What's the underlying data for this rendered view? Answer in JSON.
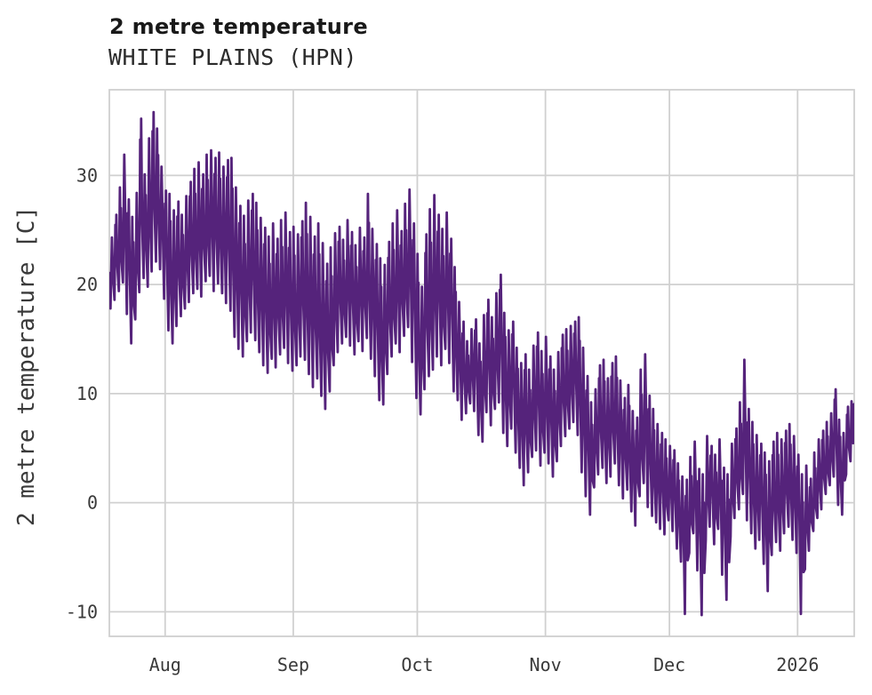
{
  "header": {
    "title": "2 metre temperature",
    "subtitle": "WHITE PLAINS (HPN)"
  },
  "chart_data": {
    "type": "line",
    "title": "2 metre temperature",
    "subtitle": "WHITE PLAINS (HPN)",
    "ylabel": "2 metre temperature [C]",
    "xlabel": "",
    "unit": "C",
    "grid": true,
    "legend": false,
    "y_ticks": [
      30,
      20,
      10,
      0,
      -10
    ],
    "ylim": [
      -12.25,
      37.85
    ],
    "x_tick_labels": [
      "Aug",
      "Sep",
      "Oct",
      "Nov",
      "Dec",
      "2026"
    ],
    "x_tick_days": [
      13.5,
      44.5,
      74.5,
      105.5,
      135.5,
      166.5
    ],
    "xlim_days": [
      0,
      180.2
    ],
    "line_color": "#55237b",
    "grid_color": "#d0d0d0",
    "text_color": "#3a3a3a",
    "series": [
      {
        "name": "2 metre temperature",
        "daily_max": [
          24.3,
          26.4,
          28.9,
          31.9,
          27.8,
          26.2,
          28.4,
          35.2,
          30.1,
          33.4,
          35.8,
          34.3,
          30.8,
          28.6,
          28.3,
          26.8,
          27.6,
          26.4,
          28.1,
          29.4,
          30.6,
          31.2,
          30.1,
          31.9,
          32.3,
          31.6,
          32.1,
          30.8,
          31.4,
          31.6,
          28.9,
          27.2,
          26.3,
          27.7,
          28.3,
          27.5,
          26.1,
          25.2,
          24.4,
          25.6,
          24.2,
          25.9,
          26.6,
          24.8,
          25.3,
          24.6,
          25.8,
          27.5,
          26.2,
          24.4,
          25.6,
          23.8,
          21.9,
          23.4,
          24.7,
          25.3,
          24.1,
          25.9,
          24.8,
          23.6,
          25.2,
          24.3,
          28.3,
          25.1,
          23.7,
          22.4,
          21.8,
          23.9,
          25.6,
          26.8,
          24.9,
          27.4,
          28.7,
          25.6,
          22.8,
          19.8,
          24.6,
          26.9,
          28.2,
          26.4,
          25.1,
          26.6,
          24.2,
          21.6,
          18.4,
          16.6,
          14.8,
          15.9,
          16.8,
          14.6,
          17.2,
          18.6,
          17.0,
          19.2,
          20.9,
          17.4,
          15.8,
          16.6,
          14.2,
          12.8,
          13.6,
          12.2,
          14.4,
          15.6,
          13.9,
          15.2,
          13.4,
          12.2,
          13.8,
          15.4,
          15.9,
          16.2,
          16.6,
          17.0,
          14.2,
          11.6,
          9.2,
          10.4,
          12.6,
          13.1,
          11.4,
          12.8,
          13.4,
          11.2,
          9.6,
          10.8,
          8.4,
          7.8,
          12.2,
          13.6,
          9.8,
          8.6,
          7.2,
          6.4,
          5.8,
          5.2,
          4.8,
          3.6,
          2.4,
          2.1,
          4.2,
          5.6,
          3.1,
          2.6,
          6.1,
          5.2,
          4.4,
          5.8,
          3.2,
          2.6,
          5.4,
          6.8,
          9.2,
          13.1,
          8.6,
          7.4,
          6.2,
          5.4,
          4.6,
          3.8,
          5.6,
          6.4,
          5.8,
          6.6,
          7.2,
          6.1,
          4.4,
          2.6,
          3.4,
          2.2,
          4.6,
          5.8,
          6.6,
          7.4,
          8.2,
          10.4,
          7.6,
          6.4,
          8.8,
          9.3
        ],
        "daily_min": [
          17.8,
          18.6,
          19.4,
          20.2,
          17.3,
          14.6,
          16.8,
          19.3,
          20.6,
          19.8,
          21.2,
          22.1,
          21.4,
          18.7,
          15.8,
          14.6,
          16.2,
          17.1,
          17.8,
          18.4,
          19.2,
          19.6,
          18.9,
          20.3,
          20.8,
          19.4,
          20.1,
          19.2,
          18.3,
          17.6,
          15.2,
          14.1,
          13.4,
          14.8,
          15.6,
          14.9,
          13.8,
          12.6,
          11.9,
          13.2,
          12.4,
          13.6,
          14.2,
          12.8,
          12.1,
          12.6,
          13.4,
          13.1,
          11.8,
          10.6,
          11.4,
          9.8,
          8.6,
          10.2,
          12.6,
          13.8,
          14.6,
          15.2,
          14.4,
          13.6,
          14.8,
          13.9,
          15.1,
          13.2,
          11.6,
          9.4,
          9.0,
          11.8,
          13.4,
          14.6,
          13.8,
          15.3,
          16.1,
          12.9,
          9.6,
          8.1,
          10.4,
          11.6,
          12.2,
          13.4,
          12.6,
          14.1,
          12.8,
          10.2,
          9.4,
          7.6,
          8.2,
          9.1,
          8.4,
          6.2,
          5.6,
          8.3,
          7.1,
          8.6,
          9.2,
          6.4,
          5.2,
          6.8,
          4.6,
          3.2,
          1.6,
          2.8,
          4.2,
          4.8,
          3.4,
          4.6,
          3.6,
          2.4,
          3.8,
          5.2,
          6.1,
          6.8,
          7.4,
          6.2,
          2.8,
          0.6,
          -1.1,
          1.4,
          2.6,
          3.2,
          1.8,
          2.4,
          3.6,
          1.6,
          0.4,
          1.2,
          -0.8,
          -2.1,
          0.6,
          1.8,
          -0.4,
          -1.2,
          -1.8,
          -2.4,
          -2.9,
          -1.6,
          -2.6,
          -4.2,
          -5.4,
          -10.2,
          -4.6,
          -2.8,
          -6.2,
          -10.3,
          -3.4,
          -2.2,
          -3.8,
          -2.4,
          -6.6,
          -8.9,
          -3.1,
          -1.4,
          -0.6,
          0.8,
          -1.6,
          -2.8,
          -4.2,
          -3.4,
          -5.6,
          -8.1,
          -4.8,
          -3.6,
          -4.4,
          -2.8,
          -2.2,
          -3.4,
          -4.6,
          -10.2,
          -6.1,
          -4.4,
          -2.6,
          -1.4,
          -0.6,
          0.8,
          1.6,
          2.4,
          -0.2,
          -1.1,
          2.6,
          3.8
        ]
      }
    ]
  }
}
